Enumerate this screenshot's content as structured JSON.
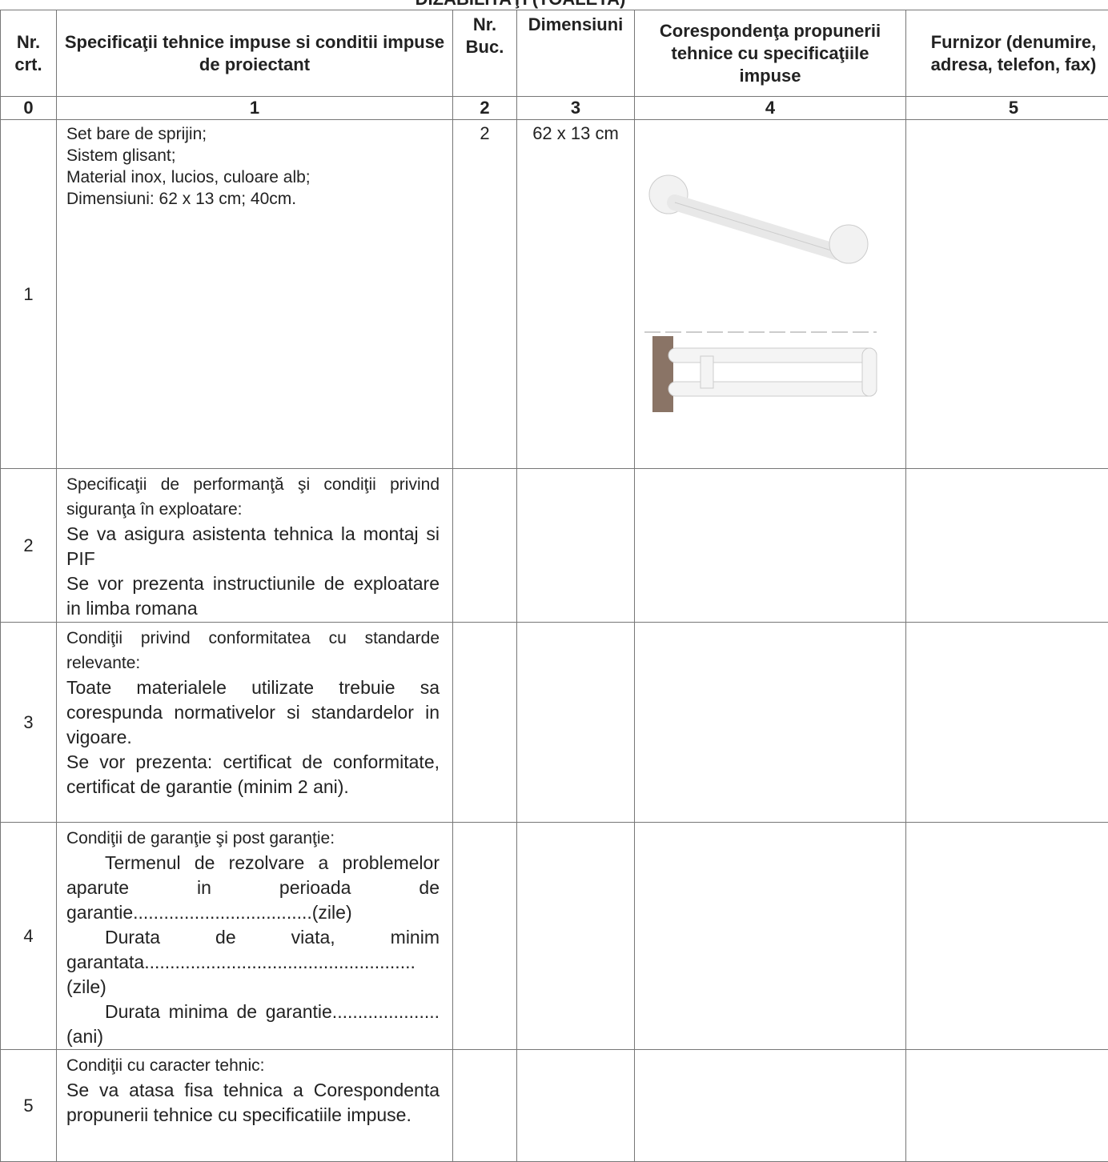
{
  "header": {
    "title": "DIZABILITAŢI (TOALETA)"
  },
  "table": {
    "columns": [
      "Nr. crt.",
      "Specificaţii tehnice impuse si conditii impuse de proiectant",
      "Nr. Buc.",
      "Dimensiuni",
      "Corespondenţa propunerii tehnice cu specificaţiile impuse",
      "Furnizor (denumire, adresa, telefon, fax)"
    ],
    "column_numbers": [
      "0",
      "1",
      "2",
      "3",
      "4",
      "5"
    ],
    "rows": [
      {
        "nr": "1",
        "spec": [
          "Set bare de sprijin;",
          "Sistem glisant;",
          "Material inox, lucios, culoare alb;",
          "Dimensiuni: 62 x 13 cm; 40cm."
        ],
        "buc": "2",
        "dim": "62 x 13 cm"
      },
      {
        "nr": "2",
        "spec": [
          "Specificaţii de performanţă şi condiţii privind siguranţa în exploatare:",
          "Se va asigura asistenta tehnica la montaj si PIF",
          "Se vor prezenta instructiunile de exploatare in limba romana"
        ]
      },
      {
        "nr": "3",
        "spec": [
          "Condiţii privind conformitatea cu standarde relevante:",
          "Toate materialele utilizate trebuie sa corespunda normativelor si standardelor in vigoare.",
          "Se vor prezenta: certificat de conformitate, certificat de garantie (minim 2 ani)."
        ]
      },
      {
        "nr": "4",
        "spec": [
          "Condiţii de garanţie şi post garanţie:",
          "Termenul de rezolvare a problemelor aparute in perioada de garantie...................................(zile)",
          "Durata de viata, minim garantata.....................................................(zile)",
          "Durata minima de garantie.....................(ani)"
        ]
      },
      {
        "nr": "5",
        "spec": [
          "Condiţii cu caracter tehnic:",
          "Se va atasa fisa tehnica a Corespondenta propunerii tehnice cu specificatiile impuse."
        ]
      }
    ]
  }
}
